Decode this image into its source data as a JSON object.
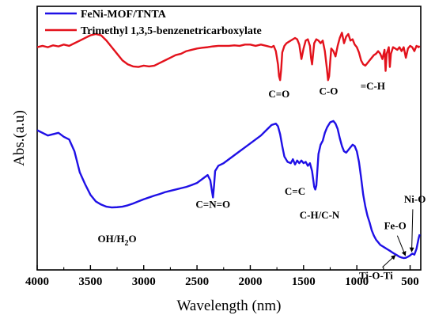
{
  "chart_data": {
    "type": "line",
    "xlabel": "Wavelength (nm)",
    "ylabel": "Abs.(a.u)",
    "xlim": [
      4000,
      400
    ],
    "ylim": [
      0,
      10
    ],
    "x_ticks": [
      4000,
      3500,
      3000,
      2500,
      2000,
      1500,
      1000,
      500
    ],
    "y_ticks_labeled": false,
    "grid": false,
    "legend_position": "top-left",
    "series": [
      {
        "name": "FeNi-MOF/TNTA",
        "color": "#1f10e6",
        "points": [
          [
            4000,
            5.3
          ],
          [
            3900,
            5.1
          ],
          [
            3800,
            5.2
          ],
          [
            3750,
            5.05
          ],
          [
            3700,
            4.95
          ],
          [
            3650,
            4.5
          ],
          [
            3600,
            3.7
          ],
          [
            3550,
            3.25
          ],
          [
            3500,
            2.85
          ],
          [
            3450,
            2.6
          ],
          [
            3400,
            2.48
          ],
          [
            3350,
            2.4
          ],
          [
            3300,
            2.37
          ],
          [
            3250,
            2.38
          ],
          [
            3200,
            2.4
          ],
          [
            3150,
            2.45
          ],
          [
            3100,
            2.52
          ],
          [
            3050,
            2.6
          ],
          [
            3000,
            2.68
          ],
          [
            2950,
            2.75
          ],
          [
            2900,
            2.82
          ],
          [
            2850,
            2.88
          ],
          [
            2800,
            2.95
          ],
          [
            2750,
            3.0
          ],
          [
            2700,
            3.05
          ],
          [
            2650,
            3.1
          ],
          [
            2600,
            3.15
          ],
          [
            2550,
            3.22
          ],
          [
            2500,
            3.3
          ],
          [
            2450,
            3.45
          ],
          [
            2400,
            3.6
          ],
          [
            2375,
            3.4
          ],
          [
            2360,
            3.0
          ],
          [
            2350,
            2.75
          ],
          [
            2340,
            3.2
          ],
          [
            2330,
            3.75
          ],
          [
            2300,
            3.95
          ],
          [
            2250,
            4.05
          ],
          [
            2200,
            4.2
          ],
          [
            2150,
            4.35
          ],
          [
            2100,
            4.5
          ],
          [
            2050,
            4.65
          ],
          [
            2000,
            4.8
          ],
          [
            1950,
            4.95
          ],
          [
            1900,
            5.1
          ],
          [
            1850,
            5.3
          ],
          [
            1800,
            5.5
          ],
          [
            1760,
            5.55
          ],
          [
            1740,
            5.45
          ],
          [
            1720,
            5.15
          ],
          [
            1700,
            4.7
          ],
          [
            1680,
            4.3
          ],
          [
            1650,
            4.1
          ],
          [
            1620,
            4.05
          ],
          [
            1600,
            4.2
          ],
          [
            1580,
            4.0
          ],
          [
            1560,
            4.15
          ],
          [
            1540,
            4.05
          ],
          [
            1520,
            4.15
          ],
          [
            1500,
            4.05
          ],
          [
            1480,
            4.1
          ],
          [
            1460,
            3.95
          ],
          [
            1440,
            4.05
          ],
          [
            1420,
            3.75
          ],
          [
            1400,
            3.15
          ],
          [
            1390,
            3.05
          ],
          [
            1380,
            3.2
          ],
          [
            1360,
            4.4
          ],
          [
            1340,
            4.75
          ],
          [
            1320,
            4.9
          ],
          [
            1300,
            5.2
          ],
          [
            1280,
            5.4
          ],
          [
            1250,
            5.6
          ],
          [
            1220,
            5.65
          ],
          [
            1200,
            5.55
          ],
          [
            1180,
            5.35
          ],
          [
            1160,
            5.0
          ],
          [
            1140,
            4.7
          ],
          [
            1120,
            4.5
          ],
          [
            1100,
            4.45
          ],
          [
            1080,
            4.55
          ],
          [
            1060,
            4.65
          ],
          [
            1040,
            4.75
          ],
          [
            1020,
            4.7
          ],
          [
            1000,
            4.5
          ],
          [
            980,
            4.1
          ],
          [
            960,
            3.5
          ],
          [
            940,
            2.85
          ],
          [
            920,
            2.4
          ],
          [
            900,
            2.05
          ],
          [
            880,
            1.8
          ],
          [
            860,
            1.5
          ],
          [
            840,
            1.3
          ],
          [
            820,
            1.15
          ],
          [
            800,
            1.05
          ],
          [
            780,
            0.95
          ],
          [
            760,
            0.9
          ],
          [
            740,
            0.85
          ],
          [
            720,
            0.8
          ],
          [
            700,
            0.75
          ],
          [
            680,
            0.7
          ],
          [
            650,
            0.62
          ],
          [
            620,
            0.55
          ],
          [
            600,
            0.5
          ],
          [
            580,
            0.47
          ],
          [
            560,
            0.45
          ],
          [
            540,
            0.46
          ],
          [
            520,
            0.5
          ],
          [
            500,
            0.55
          ],
          [
            480,
            0.62
          ],
          [
            460,
            0.58
          ],
          [
            440,
            0.8
          ],
          [
            420,
            1.2
          ],
          [
            410,
            1.35
          ]
        ]
      },
      {
        "name": "Trimethyl 1,3,5-benzenetricarboxylate",
        "color": "#e3121c",
        "points": [
          [
            4000,
            8.45
          ],
          [
            3950,
            8.5
          ],
          [
            3900,
            8.45
          ],
          [
            3850,
            8.52
          ],
          [
            3800,
            8.48
          ],
          [
            3750,
            8.55
          ],
          [
            3700,
            8.5
          ],
          [
            3650,
            8.6
          ],
          [
            3600,
            8.7
          ],
          [
            3550,
            8.8
          ],
          [
            3500,
            8.9
          ],
          [
            3450,
            8.95
          ],
          [
            3400,
            8.9
          ],
          [
            3350,
            8.7
          ],
          [
            3300,
            8.45
          ],
          [
            3250,
            8.2
          ],
          [
            3200,
            7.95
          ],
          [
            3150,
            7.8
          ],
          [
            3100,
            7.72
          ],
          [
            3050,
            7.7
          ],
          [
            3000,
            7.75
          ],
          [
            2950,
            7.72
          ],
          [
            2900,
            7.75
          ],
          [
            2850,
            7.85
          ],
          [
            2800,
            7.95
          ],
          [
            2750,
            8.05
          ],
          [
            2700,
            8.15
          ],
          [
            2650,
            8.2
          ],
          [
            2600,
            8.3
          ],
          [
            2550,
            8.35
          ],
          [
            2500,
            8.4
          ],
          [
            2450,
            8.43
          ],
          [
            2400,
            8.45
          ],
          [
            2350,
            8.48
          ],
          [
            2300,
            8.5
          ],
          [
            2250,
            8.5
          ],
          [
            2200,
            8.5
          ],
          [
            2150,
            8.52
          ],
          [
            2100,
            8.5
          ],
          [
            2050,
            8.55
          ],
          [
            2000,
            8.55
          ],
          [
            1950,
            8.5
          ],
          [
            1900,
            8.55
          ],
          [
            1850,
            8.5
          ],
          [
            1800,
            8.45
          ],
          [
            1780,
            8.5
          ],
          [
            1760,
            8.3
          ],
          [
            1740,
            7.8
          ],
          [
            1730,
            7.35
          ],
          [
            1720,
            7.2
          ],
          [
            1710,
            7.6
          ],
          [
            1700,
            8.25
          ],
          [
            1680,
            8.5
          ],
          [
            1660,
            8.6
          ],
          [
            1640,
            8.65
          ],
          [
            1620,
            8.7
          ],
          [
            1600,
            8.75
          ],
          [
            1580,
            8.8
          ],
          [
            1560,
            8.75
          ],
          [
            1540,
            8.55
          ],
          [
            1520,
            8.0
          ],
          [
            1500,
            8.4
          ],
          [
            1480,
            8.7
          ],
          [
            1460,
            8.75
          ],
          [
            1440,
            8.5
          ],
          [
            1430,
            8.05
          ],
          [
            1420,
            7.8
          ],
          [
            1410,
            8.2
          ],
          [
            1400,
            8.6
          ],
          [
            1380,
            8.75
          ],
          [
            1360,
            8.7
          ],
          [
            1340,
            8.6
          ],
          [
            1320,
            8.7
          ],
          [
            1300,
            8.3
          ],
          [
            1280,
            7.6
          ],
          [
            1270,
            7.2
          ],
          [
            1260,
            7.35
          ],
          [
            1250,
            7.9
          ],
          [
            1240,
            8.4
          ],
          [
            1220,
            8.3
          ],
          [
            1200,
            8.1
          ],
          [
            1180,
            8.5
          ],
          [
            1160,
            8.8
          ],
          [
            1140,
            9.0
          ],
          [
            1120,
            8.6
          ],
          [
            1100,
            8.85
          ],
          [
            1080,
            8.95
          ],
          [
            1060,
            8.7
          ],
          [
            1040,
            8.75
          ],
          [
            1020,
            8.55
          ],
          [
            1000,
            8.45
          ],
          [
            980,
            8.25
          ],
          [
            960,
            7.95
          ],
          [
            940,
            7.8
          ],
          [
            920,
            7.75
          ],
          [
            900,
            7.85
          ],
          [
            880,
            7.95
          ],
          [
            860,
            8.05
          ],
          [
            840,
            8.15
          ],
          [
            820,
            8.2
          ],
          [
            800,
            8.3
          ],
          [
            780,
            8.2
          ],
          [
            760,
            8.0
          ],
          [
            740,
            8.35
          ],
          [
            730,
            7.55
          ],
          [
            720,
            8.2
          ],
          [
            700,
            8.45
          ],
          [
            690,
            7.7
          ],
          [
            680,
            8.2
          ],
          [
            660,
            8.45
          ],
          [
            640,
            8.4
          ],
          [
            620,
            8.35
          ],
          [
            600,
            8.45
          ],
          [
            580,
            8.3
          ],
          [
            560,
            8.45
          ],
          [
            540,
            8.05
          ],
          [
            520,
            8.4
          ],
          [
            500,
            8.5
          ],
          [
            480,
            8.45
          ],
          [
            460,
            8.3
          ],
          [
            440,
            8.5
          ],
          [
            420,
            8.45
          ],
          [
            410,
            8.5
          ]
        ]
      }
    ],
    "annotations": [
      {
        "id": "co-double",
        "text": "C=O",
        "x": 1730,
        "y": 6.55
      },
      {
        "id": "co-single",
        "text": "C-O",
        "x": 1265,
        "y": 6.65
      },
      {
        "id": "ch-aromatic",
        "text": "=C-H",
        "x": 850,
        "y": 6.85
      },
      {
        "id": "cnn",
        "text": "C=N=O",
        "x": 2350,
        "y": 2.35
      },
      {
        "id": "cc",
        "text": "C=C",
        "x": 1580,
        "y": 2.85
      },
      {
        "id": "ch-cn",
        "text": "C-H/C-N",
        "x": 1350,
        "y": 1.95
      },
      {
        "id": "nio",
        "text": "Ni-O",
        "x": 455,
        "y": 2.55
      },
      {
        "id": "feo",
        "text": "Fe-O",
        "x": 640,
        "y": 1.55
      },
      {
        "id": "titi",
        "text": "Ti-O-Ti",
        "x": 820,
        "y": -0.35
      }
    ],
    "subscript_annotation": {
      "id": "ohh2o",
      "prefix": "OH/H",
      "sub": "2",
      "suffix": "O",
      "x": 3250,
      "y": 1.05
    }
  }
}
